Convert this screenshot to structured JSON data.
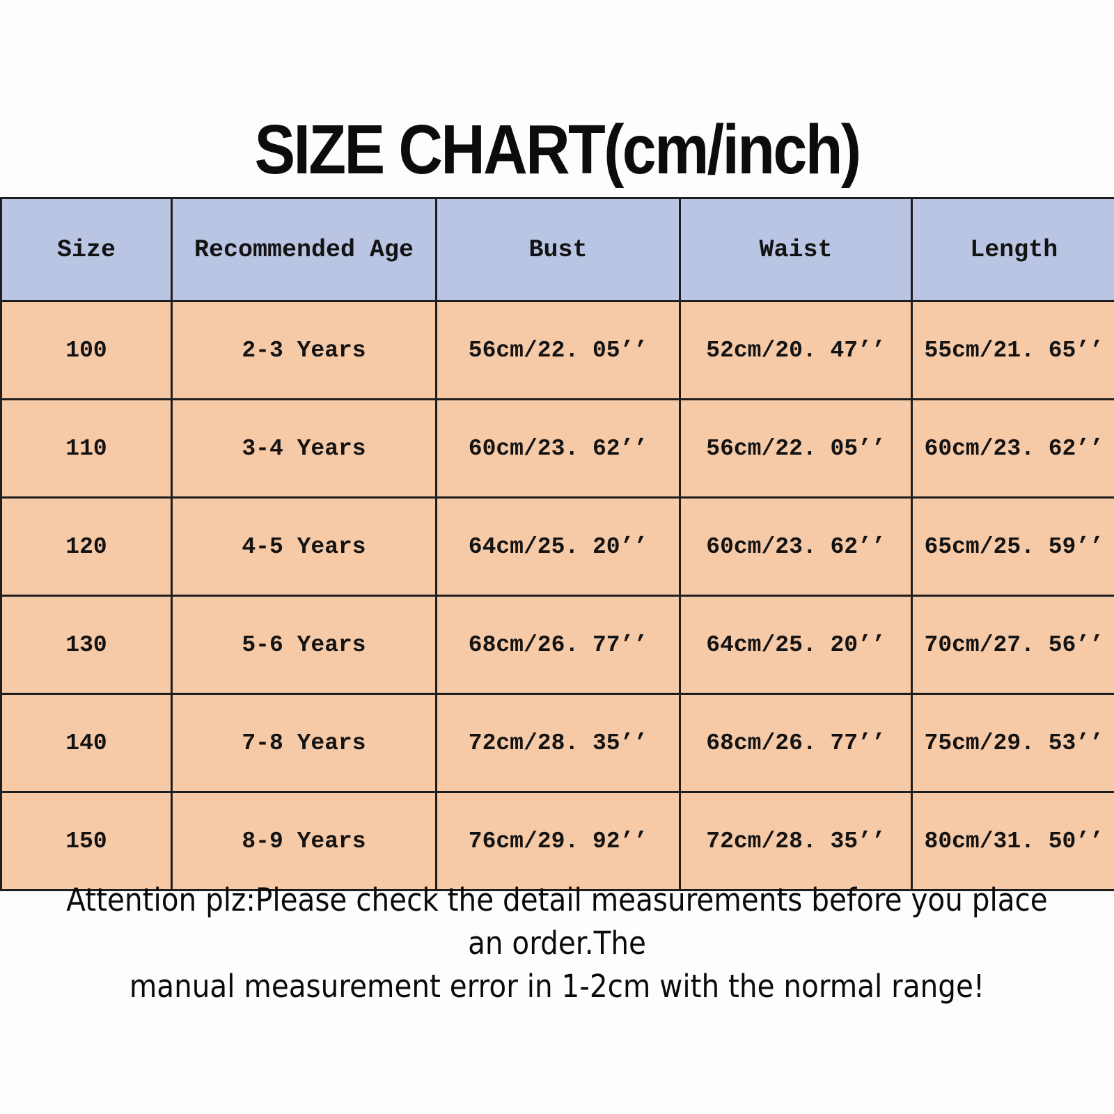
{
  "title": "SIZE CHART(cm/inch)",
  "colors": {
    "header_bg": "#b9c5e2",
    "row_bg": "#f6c9a7",
    "border": "#1e1e1e",
    "text": "#131313",
    "background": "#fdfdfd"
  },
  "table": {
    "headers": [
      "Size",
      "Recommended Age",
      "Bust",
      "Waist",
      "Length"
    ],
    "rows": [
      [
        "100",
        "2-3 Years",
        "56cm/22. 05’’",
        "52cm/20. 47’’",
        "55cm/21. 65’’"
      ],
      [
        "110",
        "3-4 Years",
        "60cm/23. 62’’",
        "56cm/22. 05’’",
        "60cm/23. 62’’"
      ],
      [
        "120",
        "4-5 Years",
        "64cm/25. 20’’",
        "60cm/23. 62’’",
        "65cm/25. 59’’"
      ],
      [
        "130",
        "5-6 Years",
        "68cm/26. 77’’",
        "64cm/25. 20’’",
        "70cm/27. 56’’"
      ],
      [
        "140",
        "7-8 Years",
        "72cm/28. 35’’",
        "68cm/26. 77’’",
        "75cm/29. 53’’"
      ],
      [
        "150",
        "8-9 Years",
        "76cm/29. 92’’",
        "72cm/28. 35’’",
        "80cm/31. 50’’"
      ]
    ]
  },
  "note": {
    "line1": "Attention plz:Please check the detail measurements before you place an order.The",
    "line2": "manual measurement error in 1-2cm with the normal range!"
  },
  "chart_data": {
    "type": "table",
    "title": "SIZE CHART(cm/inch)",
    "columns": [
      "Size",
      "Recommended Age",
      "Bust",
      "Waist",
      "Length"
    ],
    "rows": [
      [
        "100",
        "2-3 Years",
        "56cm/22.05''",
        "52cm/20.47''",
        "55cm/21.65''"
      ],
      [
        "110",
        "3-4 Years",
        "60cm/23.62''",
        "56cm/22.05''",
        "60cm/23.62''"
      ],
      [
        "120",
        "4-5 Years",
        "64cm/25.20''",
        "60cm/23.62''",
        "65cm/25.59''"
      ],
      [
        "130",
        "5-6 Years",
        "68cm/26.77''",
        "64cm/25.20''",
        "70cm/27.56''"
      ],
      [
        "140",
        "7-8 Years",
        "72cm/28.35''",
        "68cm/26.77''",
        "75cm/29.53''"
      ],
      [
        "150",
        "8-9 Years",
        "76cm/29.92''",
        "72cm/28.35''",
        "80cm/31.50''"
      ]
    ],
    "units": "cm/inch",
    "note": "Attention plz:Please check the detail measurements before you place an order.The manual measurement error in 1-2cm with the normal range!"
  }
}
